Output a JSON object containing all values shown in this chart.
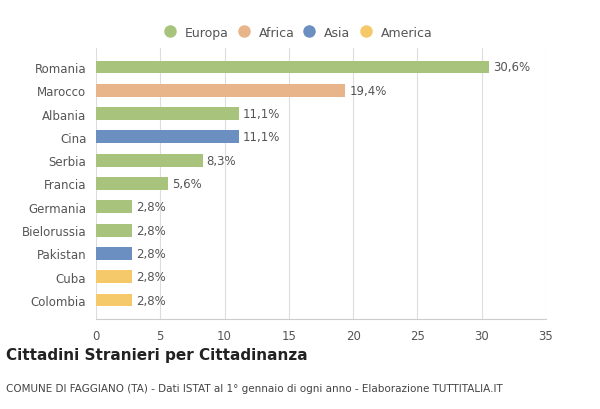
{
  "categories": [
    "Romania",
    "Marocco",
    "Albania",
    "Cina",
    "Serbia",
    "Francia",
    "Germania",
    "Bielorussia",
    "Pakistan",
    "Cuba",
    "Colombia"
  ],
  "values": [
    30.6,
    19.4,
    11.1,
    11.1,
    8.3,
    5.6,
    2.8,
    2.8,
    2.8,
    2.8,
    2.8
  ],
  "labels": [
    "30,6%",
    "19,4%",
    "11,1%",
    "11,1%",
    "8,3%",
    "5,6%",
    "2,8%",
    "2,8%",
    "2,8%",
    "2,8%",
    "2,8%"
  ],
  "colors": [
    "#a8c47c",
    "#e8b48a",
    "#a8c47c",
    "#6b8fc0",
    "#a8c47c",
    "#a8c47c",
    "#a8c47c",
    "#a8c47c",
    "#6b8fc0",
    "#f5c96a",
    "#f5c96a"
  ],
  "legend": {
    "labels": [
      "Europa",
      "Africa",
      "Asia",
      "America"
    ],
    "colors": [
      "#a8c47c",
      "#e8b48a",
      "#6b8fc0",
      "#f5c96a"
    ]
  },
  "xlim": [
    0,
    35
  ],
  "xticks": [
    0,
    5,
    10,
    15,
    20,
    25,
    30,
    35
  ],
  "title": "Cittadini Stranieri per Cittadinanza",
  "subtitle": "COMUNE DI FAGGIANO (TA) - Dati ISTAT al 1° gennaio di ogni anno - Elaborazione TUTTITALIA.IT",
  "background_color": "#ffffff",
  "bar_height": 0.55,
  "label_fontsize": 8.5,
  "tick_fontsize": 8.5,
  "title_fontsize": 11,
  "subtitle_fontsize": 7.5
}
